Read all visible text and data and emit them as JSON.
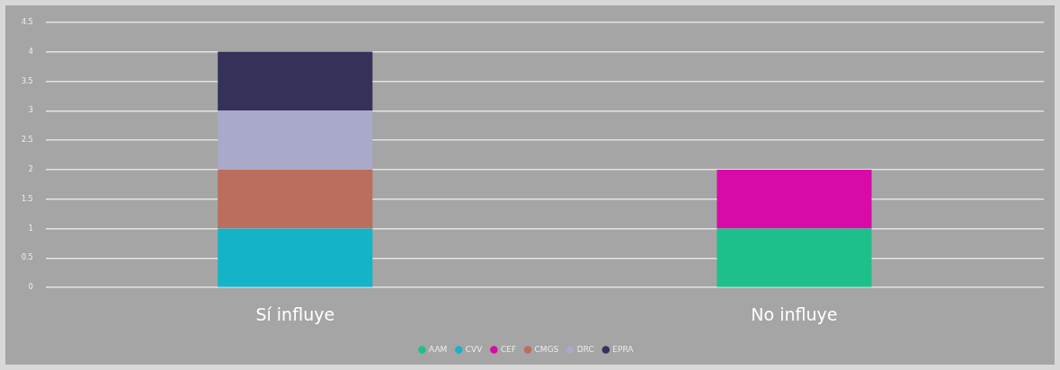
{
  "chart_data": {
    "type": "bar",
    "stacked": true,
    "categories": [
      "Sí influye",
      "No influye"
    ],
    "series": [
      {
        "name": "AAM",
        "color": "#1dc08a",
        "values": [
          null,
          1
        ]
      },
      {
        "name": "CVV",
        "color": "#15b3c8",
        "values": [
          1,
          null
        ]
      },
      {
        "name": "CEF",
        "color": "#d80aa8",
        "values": [
          null,
          1
        ]
      },
      {
        "name": "CMGS",
        "color": "#bb6e5e",
        "values": [
          1,
          null
        ]
      },
      {
        "name": "DRC",
        "color": "#a9a9c9",
        "values": [
          1,
          null
        ]
      },
      {
        "name": "EPRA",
        "color": "#35325a",
        "values": [
          1,
          null
        ]
      }
    ],
    "ylim": [
      0,
      4.5
    ],
    "yticks": [
      0,
      0.5,
      1,
      1.5,
      2,
      2.5,
      3,
      3.5,
      4,
      4.5
    ],
    "grid": "y",
    "legend": "bottom"
  }
}
